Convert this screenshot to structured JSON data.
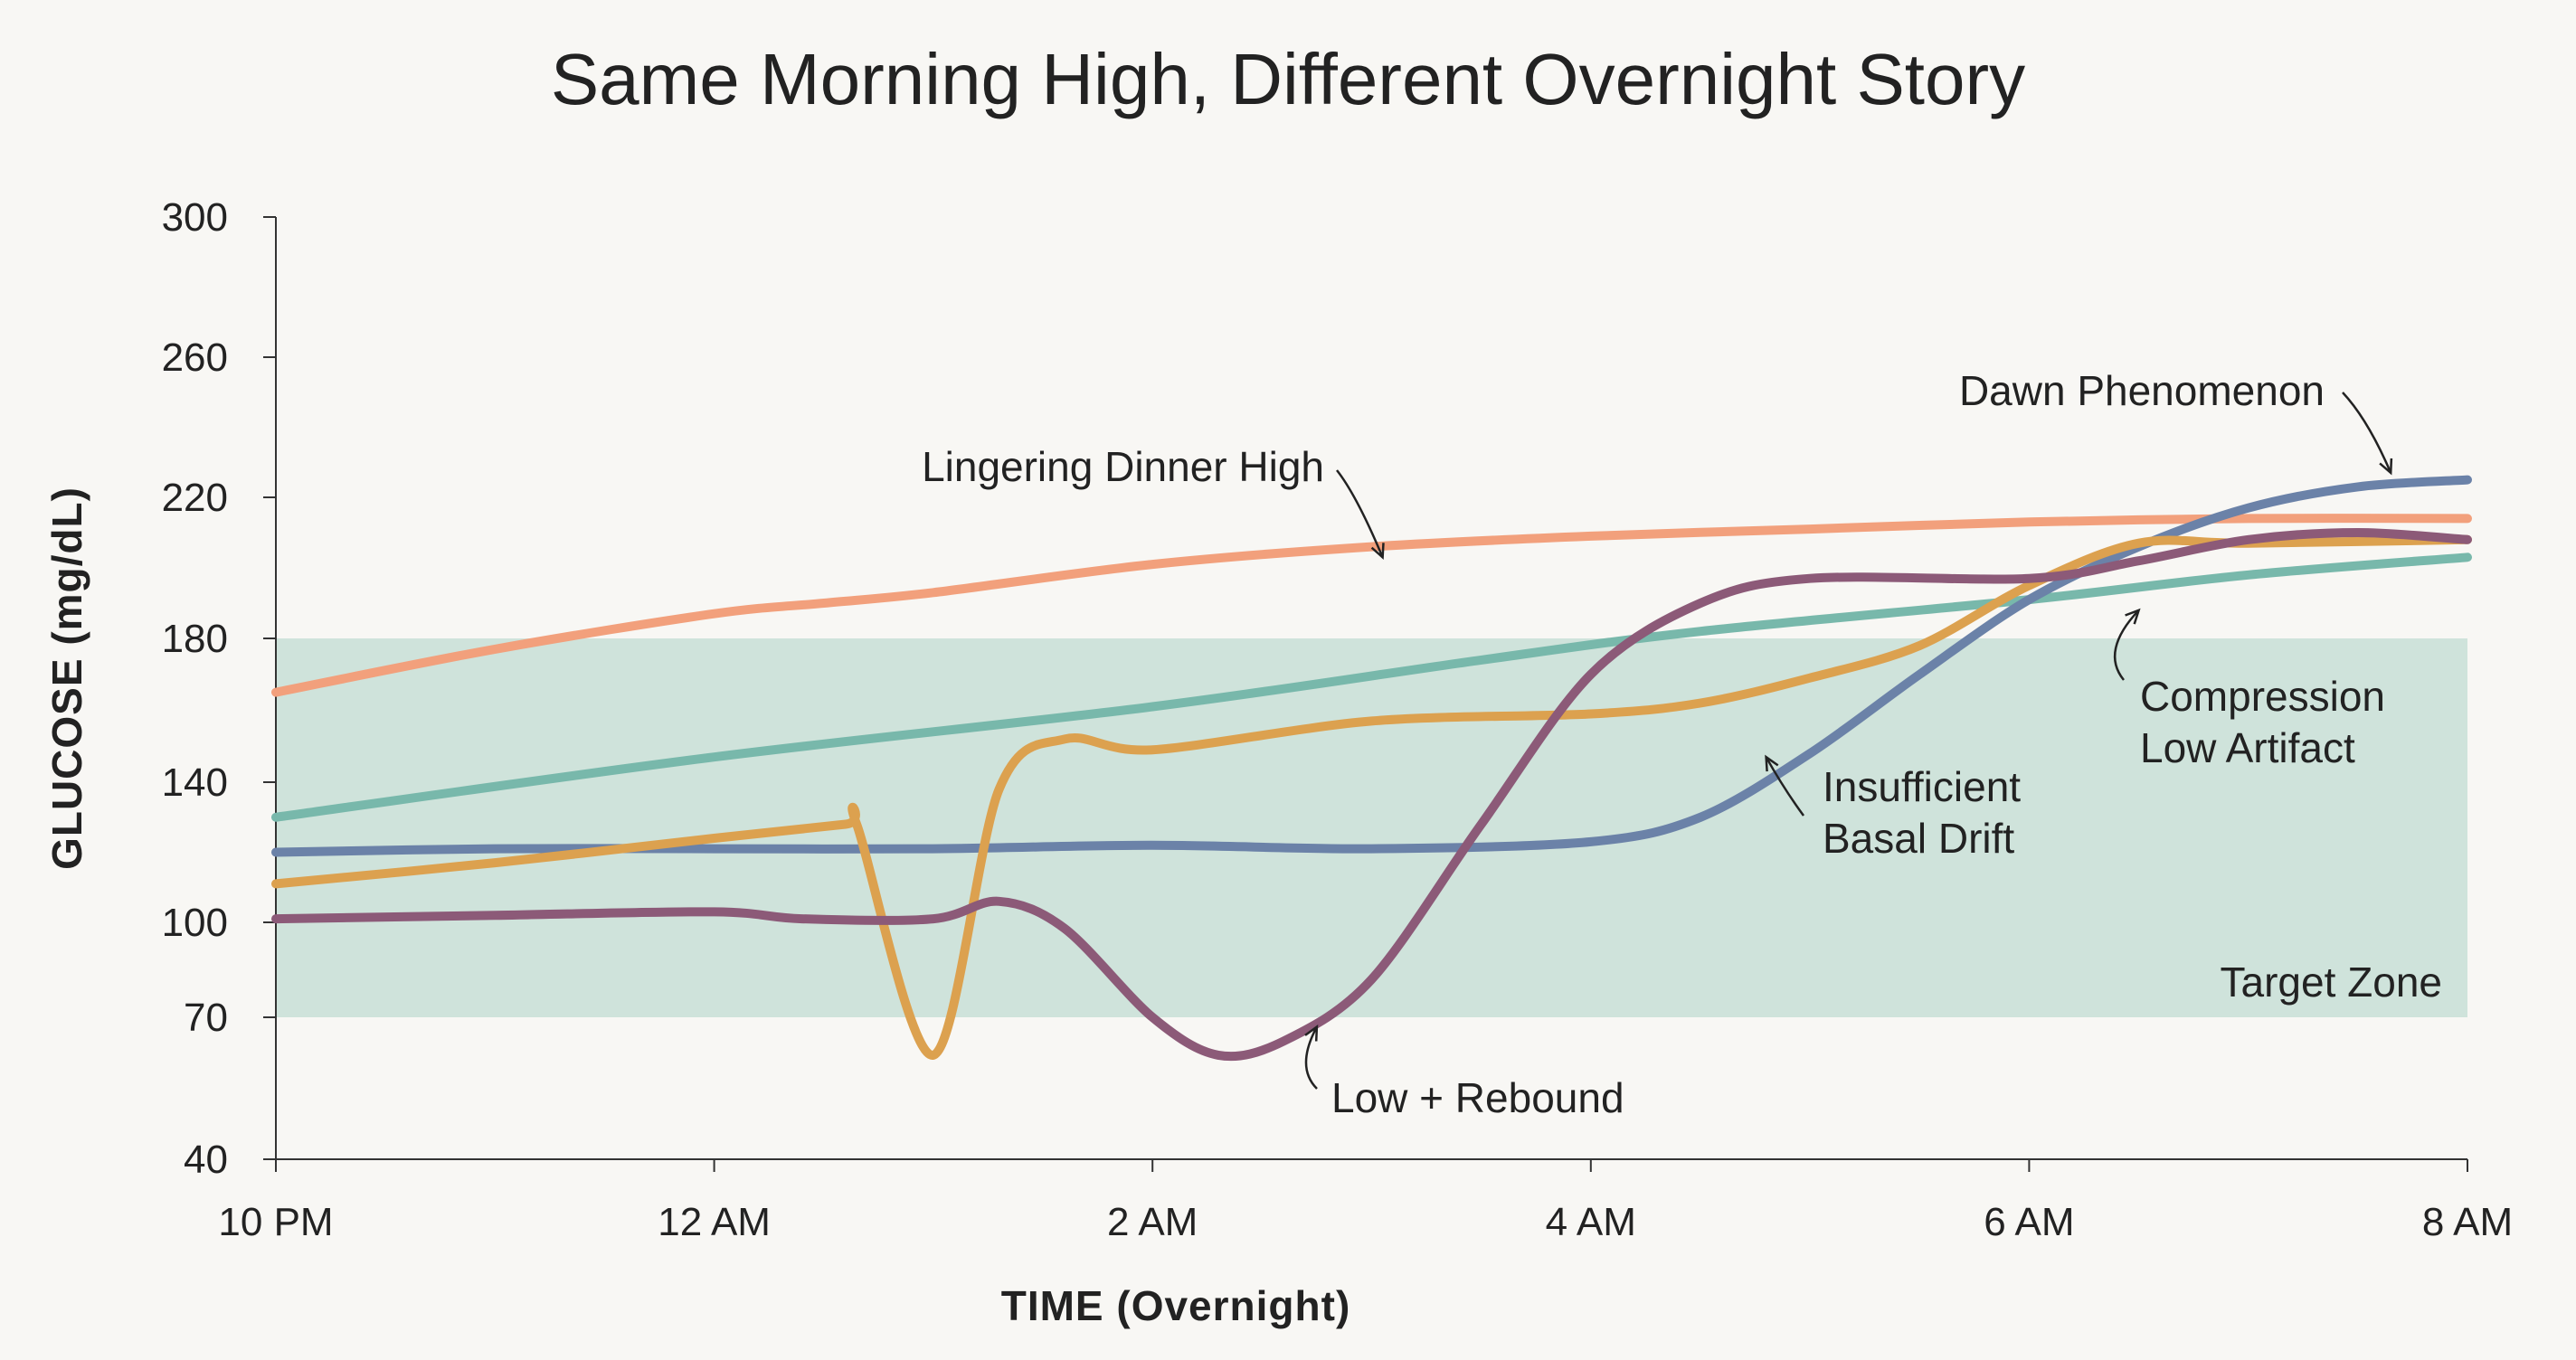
{
  "chart_data": {
    "type": "line",
    "title": "Same Morning High, Different Overnight Story",
    "xlabel": "TIME (Overnight)",
    "ylabel": "GLUCOSE (mg/dL)",
    "x_ticks": [
      "10 PM",
      "12 AM",
      "2 AM",
      "4 AM",
      "6 AM",
      "8 AM"
    ],
    "x_range_hours": [
      0,
      10
    ],
    "y_ticks": [
      40,
      70,
      100,
      140,
      180,
      220,
      260,
      300
    ],
    "ylim": [
      40,
      300
    ],
    "target_zone": {
      "label": "Target Zone",
      "low": 70,
      "high": 180,
      "color": "#cfe3db"
    },
    "grid": false,
    "series": [
      {
        "id": "dinner",
        "color": "#f2a07c",
        "points": [
          [
            0,
            165
          ],
          [
            1,
            177
          ],
          [
            2,
            187
          ],
          [
            2.5,
            190
          ],
          [
            3,
            193
          ],
          [
            4,
            201
          ],
          [
            5,
            206
          ],
          [
            6,
            209
          ],
          [
            7,
            211
          ],
          [
            8,
            213
          ],
          [
            9,
            214
          ],
          [
            10,
            214
          ]
        ]
      },
      {
        "id": "basal",
        "color": "#6b82a8",
        "points": [
          [
            0,
            120
          ],
          [
            1,
            121
          ],
          [
            2,
            121
          ],
          [
            3,
            121
          ],
          [
            4,
            122
          ],
          [
            5,
            121
          ],
          [
            6,
            123
          ],
          [
            6.5,
            130
          ],
          [
            7,
            148
          ],
          [
            7.5,
            170
          ],
          [
            8,
            191
          ],
          [
            8.5,
            206
          ],
          [
            9,
            217
          ],
          [
            9.5,
            223
          ],
          [
            10,
            225
          ]
        ]
      },
      {
        "id": "dawn",
        "color": "#78b8ab",
        "points": [
          [
            0,
            130
          ],
          [
            2,
            147
          ],
          [
            4,
            161
          ],
          [
            5.5,
            174
          ],
          [
            6.5,
            182
          ],
          [
            8,
            191
          ],
          [
            9,
            198
          ],
          [
            10,
            203
          ]
        ]
      },
      {
        "id": "compression",
        "color": "#dca14f",
        "points": [
          [
            0,
            111
          ],
          [
            1,
            117
          ],
          [
            2,
            124
          ],
          [
            2.6,
            128
          ],
          [
            2.65,
            128
          ],
          [
            3,
            62
          ],
          [
            3.3,
            138
          ],
          [
            3.6,
            152
          ],
          [
            4,
            149
          ],
          [
            5,
            157
          ],
          [
            6,
            159
          ],
          [
            6.5,
            162
          ],
          [
            7,
            169
          ],
          [
            7.5,
            178
          ],
          [
            8,
            195
          ],
          [
            8.5,
            207
          ],
          [
            9,
            207
          ],
          [
            10,
            208
          ]
        ]
      },
      {
        "id": "rebound",
        "color": "#8c5a78",
        "points": [
          [
            0,
            101
          ],
          [
            1,
            102
          ],
          [
            2,
            103
          ],
          [
            2.4,
            101
          ],
          [
            3,
            101
          ],
          [
            3.3,
            106
          ],
          [
            3.6,
            98
          ],
          [
            4,
            70
          ],
          [
            4.3,
            62
          ],
          [
            4.6,
            65
          ],
          [
            5,
            82
          ],
          [
            5.5,
            128
          ],
          [
            6,
            170
          ],
          [
            6.5,
            190
          ],
          [
            7,
            197
          ],
          [
            8,
            197
          ],
          [
            8.5,
            202
          ],
          [
            9,
            208
          ],
          [
            9.5,
            210
          ],
          [
            10,
            208
          ]
        ]
      }
    ],
    "annotations": [
      {
        "lines": [
          "Dawn Phenomenon"
        ],
        "target": [
          9.65,
          227
        ]
      },
      {
        "lines": [
          "Lingering Dinner High"
        ],
        "target": [
          5.05,
          203
        ]
      },
      {
        "lines": [
          "Compression",
          "Low Artifact"
        ],
        "target": [
          8.5,
          188
        ]
      },
      {
        "lines": [
          "Insufficient",
          "Basal Drift"
        ],
        "target": [
          6.8,
          147
        ]
      },
      {
        "lines": [
          "Low + Rebound"
        ],
        "target": [
          4.75,
          68
        ]
      }
    ]
  }
}
